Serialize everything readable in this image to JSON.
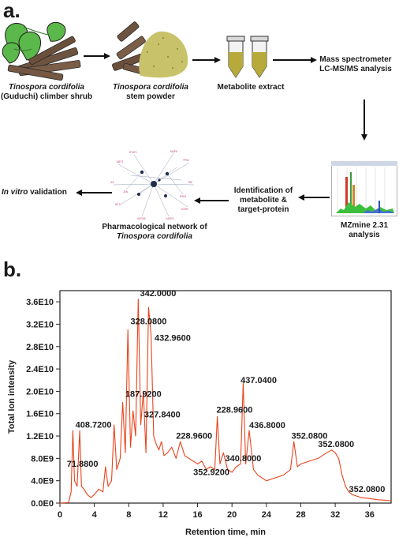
{
  "panel_a": {
    "label": "a.",
    "plant_caption_italic": "Tinospora cordifolia",
    "plant_caption_rest": "(Guduchi) climber shrub",
    "powder_caption_italic": "Tinospora cordifolia",
    "powder_caption_rest": "stem powder",
    "extract_caption": "Metabolite extract",
    "ms_caption_line1": "Mass spectrometer",
    "ms_caption_line2": "LC-MS/MS analysis",
    "mzmine_caption_line1": "MZmine 2.31",
    "mzmine_caption_line2": "analysis",
    "ident_caption_line1": "Identification of",
    "ident_caption_line2": "metabolite &",
    "ident_caption_line3": "target-protein",
    "network_caption_line1": "Pharmacological network of",
    "network_caption_italic": "Tinospora cordifolia",
    "validation_italic": "In vitro",
    "validation_rest": " validation",
    "colors": {
      "leaf": "#5bb84a",
      "stem": "#6e5340",
      "powder": "#c8c26a",
      "extract": "#b7a93a",
      "arrow": "#111111"
    }
  },
  "panel_b": {
    "label": "b."
  },
  "chart_data": {
    "type": "line",
    "xlabel": "Retention time, min",
    "ylabel": "Total Ion intensity",
    "xlim": [
      0,
      38.5
    ],
    "ylim": [
      0,
      38000000000.0
    ],
    "xticks": [
      0,
      4,
      8,
      12,
      16,
      20,
      24,
      28,
      32,
      36
    ],
    "yticks": [
      0,
      4000000000.0,
      8000000000.0,
      12000000000.0,
      16000000000.0,
      20000000000.0,
      24000000000.0,
      28000000000.0,
      32000000000.0,
      36000000000.0
    ],
    "ytick_labels": [
      "0.0E0",
      "4.0E9",
      "8.0E9",
      "1.2E10",
      "1.6E10",
      "2.0E10",
      "2.4E10",
      "2.8E10",
      "3.2E10",
      "3.6E10"
    ],
    "line_color": "#e8431c",
    "x": [
      0.0,
      1.0,
      1.3,
      1.5,
      1.7,
      2.0,
      2.3,
      2.5,
      2.8,
      3.2,
      3.6,
      4.0,
      4.5,
      5.0,
      5.3,
      5.6,
      6.0,
      6.3,
      6.6,
      7.0,
      7.3,
      7.6,
      7.9,
      8.2,
      8.5,
      8.8,
      9.1,
      9.4,
      9.7,
      10.0,
      10.3,
      10.6,
      10.9,
      11.2,
      11.5,
      11.8,
      12.1,
      12.5,
      13.0,
      13.5,
      14.0,
      14.5,
      15.0,
      15.5,
      16.0,
      16.5,
      17.0,
      17.5,
      18.0,
      18.3,
      18.6,
      19.0,
      19.5,
      20.0,
      20.5,
      21.0,
      21.3,
      21.6,
      22.0,
      22.5,
      23.0,
      24.0,
      25.0,
      26.0,
      26.8,
      27.2,
      27.6,
      28.0,
      29.0,
      30.0,
      31.0,
      31.6,
      32.0,
      32.4,
      32.8,
      33.2,
      33.6,
      34.0,
      35.0,
      36.0,
      37.0,
      38.0,
      38.5
    ],
    "y": [
      0.0,
      100000000.0,
      2000000000.0,
      13000000000.0,
      4000000000.0,
      3000000000.0,
      13000000000.0,
      3000000000.0,
      2500000000.0,
      1500000000.0,
      1000000000.0,
      1500000000.0,
      2500000000.0,
      2000000000.0,
      6500000000.0,
      3000000000.0,
      4000000000.0,
      14000000000.0,
      6000000000.0,
      8000000000.0,
      18000000000.0,
      9000000000.0,
      31000000000.0,
      10000000000.0,
      16500000000.0,
      12000000000.0,
      36500000000.0,
      14000000000.0,
      20000000000.0,
      9000000000.0,
      35000000000.0,
      30000000000.0,
      12000000000.0,
      10500000000.0,
      9500000000.0,
      11000000000.0,
      8500000000.0,
      9000000000.0,
      10000000000.0,
      8000000000.0,
      11000000000.0,
      8500000000.0,
      8000000000.0,
      7500000000.0,
      7000000000.0,
      7500000000.0,
      6000000000.0,
      6500000000.0,
      6000000000.0,
      15500000000.0,
      7000000000.0,
      9000000000.0,
      6000000000.0,
      5500000000.0,
      6500000000.0,
      7000000000.0,
      21500000000.0,
      7000000000.0,
      13000000000.0,
      6000000000.0,
      5000000000.0,
      4000000000.0,
      4500000000.0,
      5000000000.0,
      6000000000.0,
      11000000000.0,
      6500000000.0,
      7000000000.0,
      7500000000.0,
      8000000000.0,
      9000000000.0,
      9500000000.0,
      9000000000.0,
      8000000000.0,
      5000000000.0,
      3000000000.0,
      2000000000.0,
      1500000000.0,
      1000000000.0,
      800000000.0,
      600000000.0,
      500000000.0,
      400000000.0
    ],
    "annotations": [
      {
        "text": "342.0000",
        "x": 9.3,
        "y": 37000000000.0
      },
      {
        "text": "328.0800",
        "x": 8.2,
        "y": 32000000000.0
      },
      {
        "text": "432.9600",
        "x": 11.0,
        "y": 29000000000.0
      },
      {
        "text": "437.0400",
        "x": 21.0,
        "y": 21500000000.0
      },
      {
        "text": "187.9200",
        "x": 7.6,
        "y": 19000000000.0
      },
      {
        "text": "327.8400",
        "x": 9.8,
        "y": 15300000000.0
      },
      {
        "text": "408.7200",
        "x": 1.8,
        "y": 13500000000.0
      },
      {
        "text": "228.9600",
        "x": 18.2,
        "y": 16200000000.0
      },
      {
        "text": "436.8000",
        "x": 22.0,
        "y": 13400000000.0
      },
      {
        "text": "228.9600",
        "x": 13.5,
        "y": 11500000000.0
      },
      {
        "text": "352.0800",
        "x": 26.9,
        "y": 11500000000.0
      },
      {
        "text": "352.0800",
        "x": 30.0,
        "y": 10000000000.0
      },
      {
        "text": "71.8800",
        "x": 0.8,
        "y": 6500000000.0
      },
      {
        "text": "352.9200",
        "x": 15.5,
        "y": 5000000000.0
      },
      {
        "text": "340.8000",
        "x": 19.2,
        "y": 7500000000.0
      },
      {
        "text": "352.0800",
        "x": 33.6,
        "y": 2000000000.0
      }
    ]
  }
}
